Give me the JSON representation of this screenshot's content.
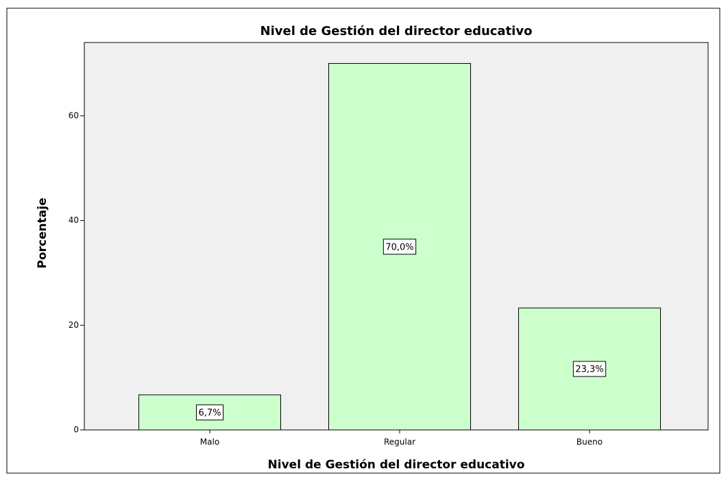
{
  "chart_data": {
    "type": "bar",
    "title": "Nivel de Gestión del director educativo",
    "x_label": "Nivel de Gestión del director educativo",
    "y_label": "Porcentaje",
    "categories": [
      "Malo",
      "Regular",
      "Bueno"
    ],
    "values": [
      6.7,
      70.0,
      23.3
    ],
    "value_labels": [
      "6,7%",
      "70,0%",
      "23,3%"
    ],
    "color": "#ccffcc",
    "ylim": [
      0,
      74
    ],
    "yticks": [
      0,
      20,
      40,
      60
    ],
    "grid": false
  }
}
